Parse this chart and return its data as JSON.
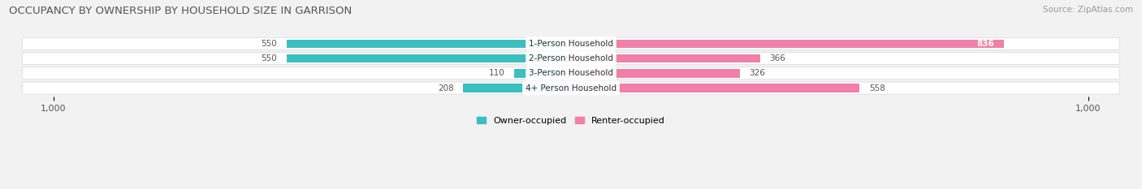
{
  "title": "OCCUPANCY BY OWNERSHIP BY HOUSEHOLD SIZE IN GARRISON",
  "source": "Source: ZipAtlas.com",
  "categories": [
    "1-Person Household",
    "2-Person Household",
    "3-Person Household",
    "4+ Person Household"
  ],
  "owner_values": [
    550,
    550,
    110,
    208
  ],
  "renter_values": [
    836,
    366,
    326,
    558
  ],
  "owner_color": "#3bbfbf",
  "renter_color": "#f080a8",
  "axis_max": 1000,
  "bg_row_color": "#ebebeb",
  "title_fontsize": 9.5,
  "source_fontsize": 7.5,
  "label_fontsize": 7.5,
  "tick_fontsize": 8,
  "legend_fontsize": 8
}
